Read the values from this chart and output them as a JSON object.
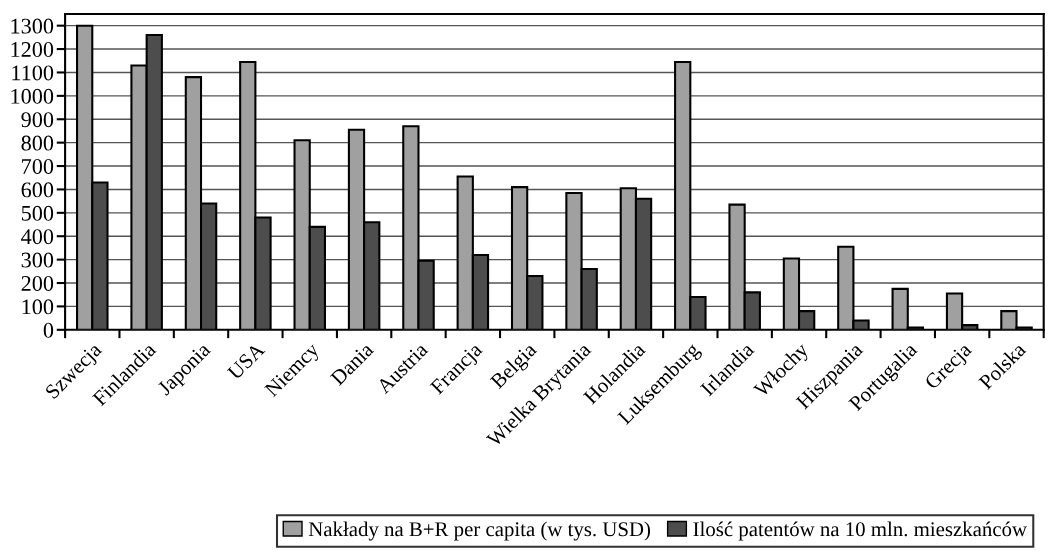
{
  "chart_data": {
    "type": "bar",
    "categories": [
      "Szwecja",
      "Finlandia",
      "Japonia",
      "USA",
      "Niemcy",
      "Dania",
      "Austria",
      "Francja",
      "Belgia",
      "Wielka Brytania",
      "Holandia",
      "Luksemburg",
      "Irlandia",
      "Włochy",
      "Hiszpania",
      "Portugalia",
      "Grecja",
      "Polska"
    ],
    "series": [
      {
        "name": "Nakłady na B+R per capita (w tys. USD)",
        "color": "#a0a0a0",
        "values": [
          1300,
          1130,
          1080,
          1145,
          810,
          855,
          870,
          655,
          610,
          585,
          605,
          1145,
          535,
          305,
          355,
          175,
          155,
          80
        ]
      },
      {
        "name": "Ilość patentów na 10 mln. mieszkańców",
        "color": "#4d4d4d",
        "values": [
          630,
          1260,
          540,
          480,
          440,
          460,
          295,
          320,
          230,
          260,
          560,
          140,
          160,
          80,
          40,
          10,
          20,
          10
        ]
      }
    ],
    "ylim": [
      0,
      1350
    ],
    "yticks": [
      0,
      100,
      200,
      300,
      400,
      500,
      600,
      700,
      800,
      900,
      1000,
      1100,
      1200,
      1300
    ],
    "grid": "y",
    "legend": "bottom"
  }
}
